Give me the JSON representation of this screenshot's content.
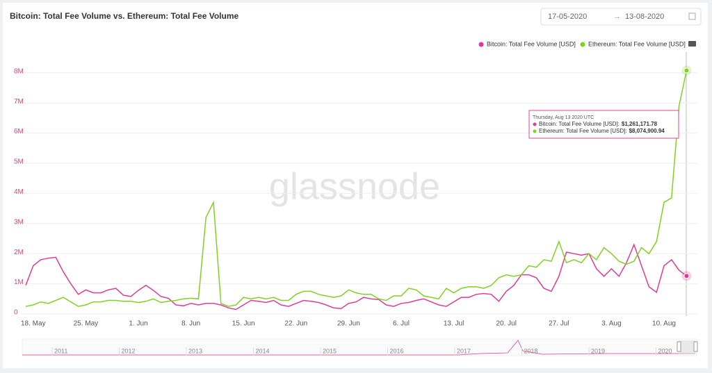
{
  "chart_data": {
    "type": "line",
    "title": "Bitcoin: Total Fee Volume vs. Ethereum: Total Fee Volume",
    "date_from": "17-05-2020",
    "date_to": "13-08-2020",
    "watermark": "glassnode",
    "categories": [
      null,
      "18. May",
      null,
      null,
      null,
      null,
      null,
      null,
      "25. May",
      null,
      null,
      null,
      null,
      null,
      null,
      "1. Jun",
      null,
      null,
      null,
      null,
      null,
      null,
      "8. Jun",
      null,
      null,
      null,
      null,
      null,
      null,
      "15. Jun",
      null,
      null,
      null,
      null,
      null,
      null,
      "22. Jun",
      null,
      null,
      null,
      null,
      null,
      null,
      "29. Jun",
      null,
      null,
      null,
      null,
      null,
      null,
      "6. Jul",
      null,
      null,
      null,
      null,
      null,
      null,
      "13. Jul",
      null,
      null,
      null,
      null,
      null,
      null,
      "20. Jul",
      null,
      null,
      null,
      null,
      null,
      null,
      "27. Jul",
      null,
      null,
      null,
      null,
      null,
      null,
      "3. Aug",
      null,
      null,
      null,
      null,
      null,
      null,
      "10. Aug",
      null,
      null,
      null
    ],
    "series": [
      {
        "name": "Bitcoin: Total Fee Volume [USD]",
        "color": "#e0399a",
        "values": [
          950000,
          1600000,
          1800000,
          1850000,
          1880000,
          1400000,
          1000000,
          650000,
          800000,
          700000,
          700000,
          800000,
          850000,
          620000,
          580000,
          780000,
          950000,
          780000,
          580000,
          520000,
          300000,
          270000,
          350000,
          300000,
          350000,
          350000,
          300000,
          200000,
          150000,
          300000,
          450000,
          420000,
          380000,
          450000,
          300000,
          250000,
          350000,
          450000,
          420000,
          380000,
          300000,
          200000,
          180000,
          350000,
          400000,
          550000,
          500000,
          480000,
          300000,
          250000,
          350000,
          380000,
          450000,
          500000,
          400000,
          300000,
          250000,
          400000,
          550000,
          550000,
          650000,
          680000,
          650000,
          420000,
          750000,
          950000,
          1300000,
          1300000,
          1200000,
          850000,
          750000,
          1250000,
          2050000,
          2000000,
          1950000,
          2000000,
          1500000,
          1250000,
          1500000,
          1250000,
          1700000,
          2300000,
          1600000,
          900000,
          720000,
          1600000,
          1800000,
          1450000,
          1261171.78
        ],
        "value_labels": [
          null,
          null,
          null,
          null,
          null,
          null,
          null,
          null,
          null,
          null,
          null,
          null,
          null,
          null,
          null,
          null,
          null,
          null,
          null,
          null,
          null,
          null,
          null,
          null,
          null,
          null,
          null,
          null,
          null,
          null,
          null,
          null,
          null,
          null,
          null,
          null,
          null,
          null,
          null,
          null,
          null,
          null,
          null,
          null,
          null,
          null,
          null,
          null,
          null,
          null,
          null,
          null,
          null,
          null,
          null,
          null,
          null,
          null,
          null,
          null,
          null,
          null,
          null,
          null,
          null,
          null,
          null,
          null,
          null,
          null,
          null,
          null,
          null,
          null,
          null,
          null,
          null,
          null,
          null,
          null,
          null,
          null,
          null,
          null,
          null,
          null,
          null,
          null,
          "$1,261,171.78"
        ]
      },
      {
        "name": "Ethereum: Total Fee Volume [USD]",
        "color": "#7ed321",
        "values": [
          250000,
          300000,
          400000,
          350000,
          450000,
          550000,
          400000,
          250000,
          300000,
          400000,
          400000,
          450000,
          450000,
          420000,
          420000,
          380000,
          420000,
          500000,
          380000,
          420000,
          450000,
          500000,
          520000,
          500000,
          3200000,
          3700000,
          350000,
          250000,
          300000,
          550000,
          500000,
          550000,
          500000,
          550000,
          450000,
          450000,
          650000,
          750000,
          750000,
          650000,
          600000,
          550000,
          600000,
          800000,
          700000,
          650000,
          650000,
          500000,
          450000,
          600000,
          600000,
          850000,
          800000,
          600000,
          550000,
          500000,
          850000,
          700000,
          850000,
          900000,
          900000,
          850000,
          950000,
          1200000,
          1300000,
          1250000,
          1300000,
          1600000,
          1550000,
          1800000,
          1750000,
          2400000,
          1700000,
          1800000,
          1700000,
          2000000,
          1800000,
          2200000,
          2000000,
          1750000,
          1650000,
          1750000,
          2200000,
          2000000,
          2400000,
          3700000,
          3850000,
          6900000,
          8074900.94
        ],
        "value_labels": [
          null,
          null,
          null,
          null,
          null,
          null,
          null,
          null,
          null,
          null,
          null,
          null,
          null,
          null,
          null,
          null,
          null,
          null,
          null,
          null,
          null,
          null,
          null,
          null,
          null,
          null,
          null,
          null,
          null,
          null,
          null,
          null,
          null,
          null,
          null,
          null,
          null,
          null,
          null,
          null,
          null,
          null,
          null,
          null,
          null,
          null,
          null,
          null,
          null,
          null,
          null,
          null,
          null,
          null,
          null,
          null,
          null,
          null,
          null,
          null,
          null,
          null,
          null,
          null,
          null,
          null,
          null,
          null,
          null,
          null,
          null,
          null,
          null,
          null,
          null,
          null,
          null,
          null,
          null,
          null,
          null,
          null,
          null,
          null,
          null,
          null,
          null,
          null,
          "$8,074,900.94"
        ]
      }
    ],
    "tooltip": {
      "title": "Thursday, Aug 13 2020 UTC",
      "labels": [
        "Bitcoin: Total Fee Volume [USD]:",
        "Ethereum: Total Fee Volume [USD]:"
      ]
    },
    "ylim": [
      0,
      8800000
    ],
    "yticks": [
      0,
      {
        "value": 1000000,
        "label": "1M"
      },
      {
        "value": 2000000,
        "label": "2M"
      },
      {
        "value": 3000000,
        "label": "3M"
      },
      {
        "value": 4000000,
        "label": "4M"
      },
      {
        "value": 5000000,
        "label": "5M"
      },
      {
        "value": 6000000,
        "label": "6M"
      },
      {
        "value": 7000000,
        "label": "7M"
      },
      {
        "value": 8000000,
        "label": "8M"
      }
    ],
    "grid": true,
    "legend": "top-right",
    "navigator_labels": [
      "2011",
      "2012",
      "2013",
      "2014",
      "2015",
      "2016",
      "2017",
      "2018",
      "2019",
      "2020"
    ]
  }
}
